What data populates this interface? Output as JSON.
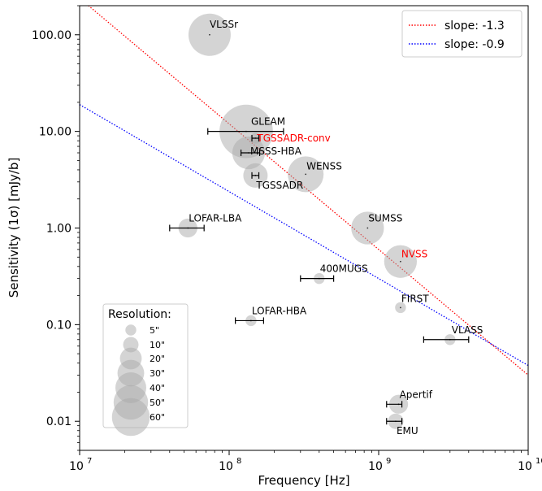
{
  "chart_data": {
    "type": "scatter",
    "xlabel": "Frequency [Hz]",
    "ylabel": "Sensitivity (1σ) [mJy/b]",
    "xscale": "log",
    "yscale": "log",
    "xlim": [
      10000000.0,
      10000000000.0
    ],
    "ylim": [
      0.005,
      200
    ],
    "x_tick_labels": [
      {
        "value": 10000000.0,
        "base": "10",
        "exp": "7"
      },
      {
        "value": 100000000.0,
        "base": "10",
        "exp": "8"
      },
      {
        "value": 1000000000.0,
        "base": "10",
        "exp": "9"
      },
      {
        "value": 10000000000.0,
        "base": "10",
        "exp": "10"
      }
    ],
    "y_tick_labels": [
      {
        "value": 0.01,
        "label": "0.01"
      },
      {
        "value": 0.1,
        "label": "0.10"
      },
      {
        "value": 1,
        "label": "1.00"
      },
      {
        "value": 10,
        "label": "10.00"
      },
      {
        "value": 100,
        "label": "100.00"
      }
    ],
    "grid": false,
    "colors": {
      "bubble": "#a9a9a9",
      "highlight": "#ff0000",
      "red_line": "#ff0000",
      "blue_line": "#0000ff"
    },
    "points": [
      {
        "name": "VLSSr",
        "freq": 74000000.0,
        "sens": 100,
        "resolution": 75,
        "highlight": false
      },
      {
        "name": "GLEAM",
        "freq": 130000000.0,
        "sens": 10,
        "resolution": 120,
        "fmin": 72000000.0,
        "fmax": 231000000.0,
        "highlight": false
      },
      {
        "name": "TGSSADR-conv",
        "freq": 150000000.0,
        "sens": 8.5,
        "resolution": 5,
        "fmin": 142000000.0,
        "fmax": 158000000.0,
        "highlight": true
      },
      {
        "name": "MSSS-HBA",
        "freq": 135000000.0,
        "sens": 6,
        "resolution": 45,
        "fmin": 120000000.0,
        "fmax": 160000000.0,
        "highlight": false
      },
      {
        "name": "TGSSADR",
        "freq": 150000000.0,
        "sens": 3.5,
        "resolution": 25,
        "fmin": 142000000.0,
        "fmax": 158000000.0,
        "highlight": false
      },
      {
        "name": "WENSS",
        "freq": 325000000.0,
        "sens": 3.6,
        "resolution": 54,
        "highlight": false
      },
      {
        "name": "LOFAR-LBA",
        "freq": 53000000.0,
        "sens": 1.0,
        "resolution": 15,
        "fmin": 40000000.0,
        "fmax": 68000000.0,
        "highlight": false
      },
      {
        "name": "SUMSS",
        "freq": 843000000.0,
        "sens": 1.0,
        "resolution": 45,
        "highlight": false
      },
      {
        "name": "NVSS",
        "freq": 1400000000.0,
        "sens": 0.45,
        "resolution": 45,
        "highlight": true
      },
      {
        "name": "400MUGS",
        "freq": 400000000.0,
        "sens": 0.3,
        "resolution": 5,
        "fmin": 300000000.0,
        "fmax": 500000000.0,
        "highlight": false
      },
      {
        "name": "FIRST",
        "freq": 1400000000.0,
        "sens": 0.15,
        "resolution": 5,
        "highlight": false
      },
      {
        "name": "LOFAR-HBA",
        "freq": 140000000.0,
        "sens": 0.11,
        "resolution": 5,
        "fmin": 110000000.0,
        "fmax": 170000000.0,
        "highlight": false
      },
      {
        "name": "VLASS",
        "freq": 3000000000.0,
        "sens": 0.07,
        "resolution": 5,
        "fmin": 2000000000.0,
        "fmax": 4000000000.0,
        "highlight": false
      },
      {
        "name": "Apertif",
        "freq": 1360000000.0,
        "sens": 0.015,
        "resolution": 15,
        "fmin": 1130000000.0,
        "fmax": 1430000000.0,
        "highlight": false
      },
      {
        "name": "EMU",
        "freq": 1300000000.0,
        "sens": 0.01,
        "resolution": 10,
        "fmin": 1130000000.0,
        "fmax": 1430000000.0,
        "highlight": false
      }
    ],
    "lines": [
      {
        "name": "slope: -1.3",
        "slope": -1.3,
        "ref_freq": 1000000000.0,
        "ref_sens": 0.6,
        "color": "#ff0000",
        "style": "dotted"
      },
      {
        "name": "slope: -0.9",
        "slope": -0.9,
        "ref_freq": 1000000000.0,
        "ref_sens": 0.3,
        "color": "#0000ff",
        "style": "dotted"
      }
    ],
    "legend": {
      "placement": "top-right"
    },
    "resolution_legend": {
      "title": "Resolution:",
      "placement": "bottom-left",
      "entries": [
        {
          "label": "5\"",
          "value": 5
        },
        {
          "label": "10\"",
          "value": 10
        },
        {
          "label": "20\"",
          "value": 20
        },
        {
          "label": "30\"",
          "value": 30
        },
        {
          "label": "40\"",
          "value": 40
        },
        {
          "label": "50\"",
          "value": 50
        },
        {
          "label": "60\"",
          "value": 60
        }
      ]
    }
  }
}
